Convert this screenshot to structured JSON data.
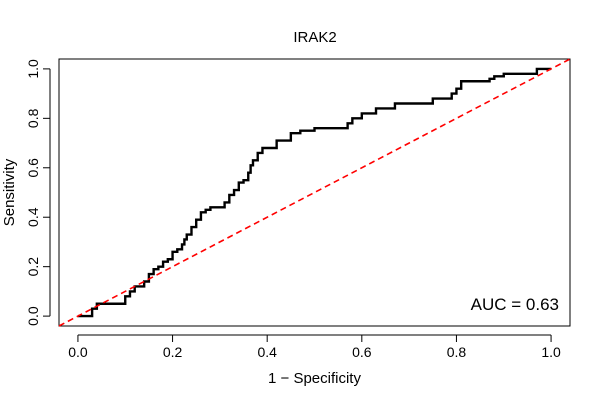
{
  "chart_data": {
    "type": "line",
    "title": "IRAK2",
    "xlabel": "1 − Specificity",
    "ylabel": "Sensitivity",
    "xlim": [
      0,
      1
    ],
    "ylim": [
      0,
      1
    ],
    "x_ticks": [
      "0.0",
      "0.2",
      "0.4",
      "0.6",
      "0.8",
      "1.0"
    ],
    "y_ticks": [
      "0.0",
      "0.2",
      "0.4",
      "0.6",
      "0.8",
      "1.0"
    ],
    "grid": false,
    "annotation": "AUC = 0.63",
    "annotation_position": "bottom-right",
    "series": [
      {
        "name": "ROC curve",
        "color": "#000000",
        "style": "solid",
        "x": [
          0.0,
          0.03,
          0.03,
          0.04,
          0.04,
          0.1,
          0.1,
          0.11,
          0.11,
          0.12,
          0.12,
          0.14,
          0.14,
          0.15,
          0.15,
          0.16,
          0.16,
          0.17,
          0.17,
          0.18,
          0.18,
          0.19,
          0.19,
          0.2,
          0.2,
          0.2,
          0.2,
          0.21,
          0.21,
          0.22,
          0.22,
          0.225,
          0.225,
          0.23,
          0.23,
          0.24,
          0.24,
          0.25,
          0.25,
          0.26,
          0.26,
          0.27,
          0.27,
          0.28,
          0.28,
          0.31,
          0.31,
          0.32,
          0.32,
          0.33,
          0.33,
          0.34,
          0.34,
          0.35,
          0.35,
          0.36,
          0.36,
          0.365,
          0.365,
          0.37,
          0.37,
          0.38,
          0.38,
          0.39,
          0.39,
          0.42,
          0.42,
          0.45,
          0.45,
          0.47,
          0.47,
          0.5,
          0.5,
          0.57,
          0.57,
          0.58,
          0.58,
          0.6,
          0.6,
          0.63,
          0.63,
          0.67,
          0.67,
          0.75,
          0.75,
          0.79,
          0.79,
          0.8,
          0.8,
          0.81,
          0.81,
          0.87,
          0.87,
          0.88,
          0.88,
          0.9,
          0.9,
          0.97,
          0.97,
          1.0
        ],
        "y": [
          0.0,
          0.0,
          0.03,
          0.03,
          0.05,
          0.05,
          0.08,
          0.08,
          0.1,
          0.1,
          0.12,
          0.12,
          0.14,
          0.14,
          0.17,
          0.17,
          0.19,
          0.19,
          0.2,
          0.2,
          0.22,
          0.22,
          0.23,
          0.23,
          0.25,
          0.25,
          0.26,
          0.26,
          0.27,
          0.27,
          0.29,
          0.29,
          0.31,
          0.31,
          0.33,
          0.33,
          0.36,
          0.36,
          0.39,
          0.39,
          0.42,
          0.42,
          0.43,
          0.43,
          0.44,
          0.44,
          0.46,
          0.46,
          0.49,
          0.49,
          0.51,
          0.51,
          0.54,
          0.54,
          0.55,
          0.55,
          0.58,
          0.58,
          0.61,
          0.61,
          0.63,
          0.63,
          0.66,
          0.66,
          0.68,
          0.68,
          0.71,
          0.71,
          0.74,
          0.74,
          0.75,
          0.75,
          0.76,
          0.76,
          0.78,
          0.78,
          0.8,
          0.8,
          0.82,
          0.82,
          0.84,
          0.84,
          0.86,
          0.86,
          0.88,
          0.88,
          0.9,
          0.9,
          0.92,
          0.92,
          0.95,
          0.95,
          0.96,
          0.96,
          0.97,
          0.97,
          0.98,
          0.98,
          1.0,
          1.0
        ]
      },
      {
        "name": "Reference diagonal",
        "color": "#ff0000",
        "style": "dashed",
        "x": [
          -0.04,
          1.04
        ],
        "y": [
          -0.04,
          1.04
        ]
      }
    ]
  }
}
